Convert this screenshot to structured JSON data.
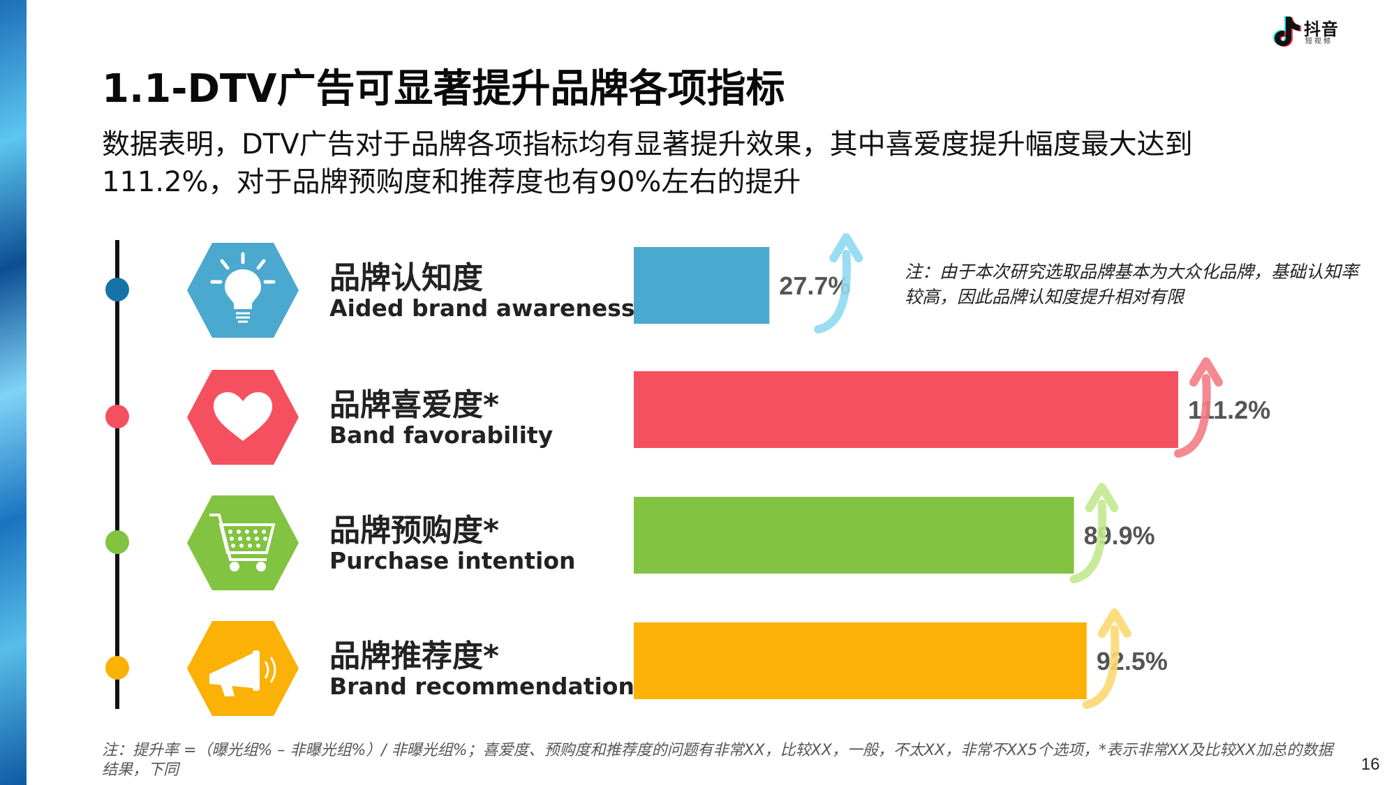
{
  "brand": {
    "name": "抖音",
    "sub": "短视频"
  },
  "title": "1.1-DTV广告可显著提升品牌各项指标",
  "subtitle": "数据表明，DTV广告对于品牌各项指标均有显著提升效果，其中喜爱度提升幅度最大达到111.2%，对于品牌预购度和推荐度也有90%左右的提升",
  "categories": [
    {
      "zh": "品牌认知度",
      "en": "Aided brand awareness",
      "icon": "lightbulb-icon",
      "color": "#4BA8CF",
      "arrow_color": "#8FD9F2"
    },
    {
      "zh": "品牌喜爱度*",
      "en": "Band favorability",
      "icon": "heart-icon",
      "color": "#F4505F",
      "arrow_color": "#F47C86"
    },
    {
      "zh": "品牌预购度*",
      "en": "Purchase intention",
      "icon": "shopping-cart-icon",
      "color": "#82C341",
      "arrow_color": "#C2E98E"
    },
    {
      "zh": "品牌推荐度*",
      "en": "Brand recommendation",
      "icon": "megaphone-icon",
      "color": "#FBB105",
      "arrow_color": "#FCD872"
    }
  ],
  "chart_data": {
    "type": "bar",
    "orientation": "horizontal",
    "categories": [
      "品牌认知度",
      "品牌喜爱度*",
      "品牌预购度*",
      "品牌推荐度*"
    ],
    "values": [
      27.7,
      111.2,
      89.9,
      92.5
    ],
    "labels": [
      "27.7%",
      "111.2%",
      "89.9%",
      "92.5%"
    ],
    "unit": "%",
    "xlim": [
      0,
      111.2
    ],
    "grid": false,
    "legend": "none"
  },
  "side_note": "注：由于本次研究选取品牌基本为大众化品牌，基础认知率较高，因此品牌认知度提升相对有限",
  "footnote": "注：提升率 =（曝光组% – 非曝光组%）/ 非曝光组%；喜爱度、预购度和推荐度的问题有非常XX，比较XX，一般，不太XX，非常不XX5个选项，*表示非常XX及比较XX加总的数据结果，下同",
  "page_number": "16"
}
